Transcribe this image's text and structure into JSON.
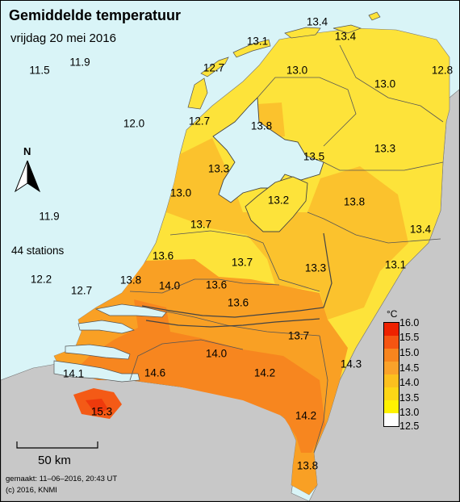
{
  "header": {
    "title": "Gemiddelde temperatuur",
    "subtitle": "vrijdag 20 mei 2016"
  },
  "sea_values": [
    "11.5",
    "11.9",
    "12.0",
    "11.9",
    "12.2",
    "12.7"
  ],
  "stations_text": "44 stations",
  "north_label": "N",
  "scale_label": "50 km",
  "footer": {
    "made": "gemaakt: 11–06–2016, 20:43 UT",
    "copyright": "(c) 2016, KNMI"
  },
  "legend": {
    "unit": "°C",
    "ticks": [
      "16.0",
      "15.5",
      "15.0",
      "14.5",
      "14.0",
      "13.5",
      "13.0",
      "12.5"
    ],
    "colors": [
      "#ee2200",
      "#f55512",
      "#f7851e",
      "#faa22a",
      "#fcc01e",
      "#fdd616",
      "#fff200",
      "#ffffff"
    ]
  },
  "colors": {
    "sea": "#d9f4f7",
    "land_outside": "#c8c8c8",
    "temp_13_0": "#fde33a",
    "temp_13_5": "#fbc22d",
    "temp_14_0": "#f9a024",
    "temp_14_5": "#f7861f",
    "temp_15_0": "#f45a16"
  },
  "map_values": [
    "13.4",
    "13.1",
    "13.4",
    "12.7",
    "13.0",
    "13.0",
    "12.8",
    "12.7",
    "13.8",
    "13.5",
    "13.3",
    "13.3",
    "13.0",
    "13.2",
    "13.8",
    "13.7",
    "13.4",
    "13.6",
    "13.7",
    "13.3",
    "13.1",
    "13.8",
    "14.0",
    "13.6",
    "13.6",
    "13.7",
    "14.3",
    "14.0",
    "14.2",
    "14.1",
    "14.6",
    "15.3",
    "14.2",
    "13.8"
  ]
}
